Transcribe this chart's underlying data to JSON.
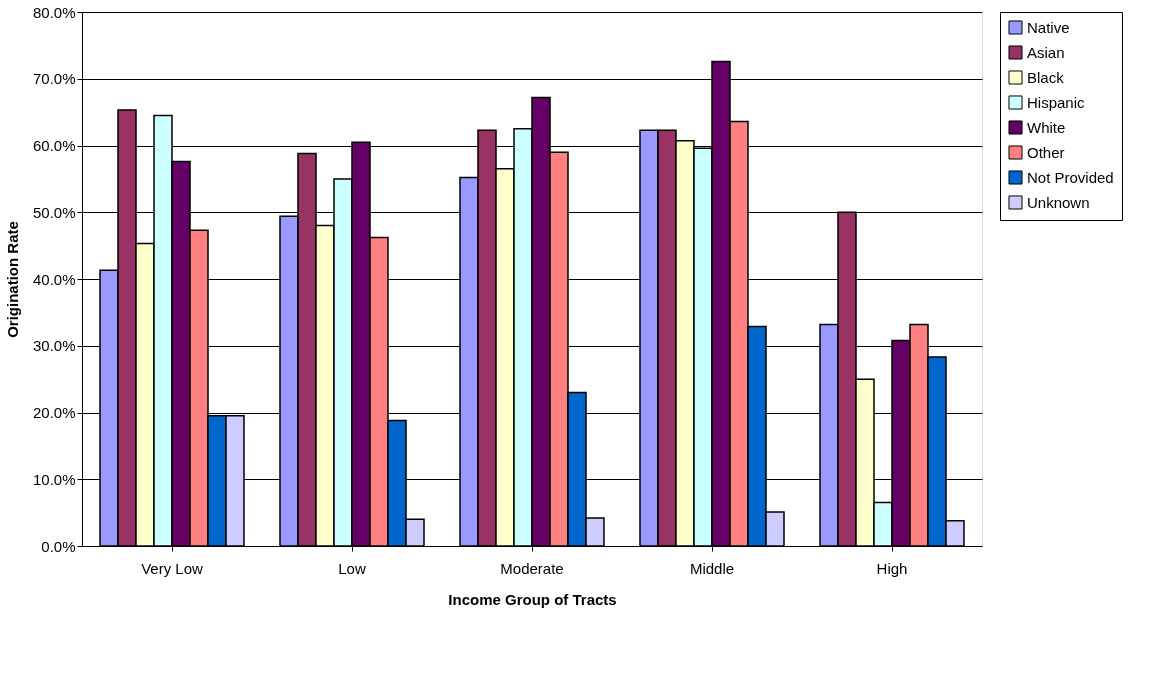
{
  "chart_data": {
    "type": "bar",
    "xlabel": "Income Group of Tracts",
    "ylabel": "Origination Rate",
    "categories": [
      "Very Low",
      "Low",
      "Moderate",
      "Middle",
      "High"
    ],
    "series": [
      {
        "name": "Native",
        "color": "#9999ff",
        "values": [
          41.3,
          49.4,
          55.2,
          62.3,
          33.2
        ]
      },
      {
        "name": "Asian",
        "color": "#993366",
        "values": [
          65.3,
          58.8,
          62.3,
          62.3,
          50.0
        ]
      },
      {
        "name": "Black",
        "color": "#ffffcc",
        "values": [
          45.3,
          48.0,
          56.5,
          60.7,
          25.0
        ]
      },
      {
        "name": "Hispanic",
        "color": "#ccffff",
        "values": [
          64.5,
          55.0,
          62.5,
          59.6,
          6.5
        ]
      },
      {
        "name": "White",
        "color": "#660066",
        "values": [
          57.6,
          60.5,
          67.2,
          72.6,
          30.8
        ]
      },
      {
        "name": "Other",
        "color": "#ff8080",
        "values": [
          47.3,
          46.2,
          59.0,
          63.6,
          33.2
        ]
      },
      {
        "name": "Not Provided",
        "color": "#0066cc",
        "values": [
          19.5,
          18.8,
          23.0,
          32.9,
          28.3
        ]
      },
      {
        "name": "Unknown",
        "color": "#ccccff",
        "values": [
          19.5,
          4.0,
          4.2,
          5.1,
          3.8
        ]
      }
    ],
    "ylim": [
      0,
      80
    ],
    "yticks": [
      {
        "value": 0,
        "label": "0.0%"
      },
      {
        "value": 10,
        "label": "10.0%"
      },
      {
        "value": 20,
        "label": "20.0%"
      },
      {
        "value": 30,
        "label": "30.0%"
      },
      {
        "value": 40,
        "label": "40.0%"
      },
      {
        "value": 50,
        "label": "50.0%"
      },
      {
        "value": 60,
        "label": "60.0%"
      },
      {
        "value": 70,
        "label": "70.0%"
      },
      {
        "value": 80,
        "label": "80.0%"
      }
    ],
    "grid": "y",
    "legend": "right"
  }
}
